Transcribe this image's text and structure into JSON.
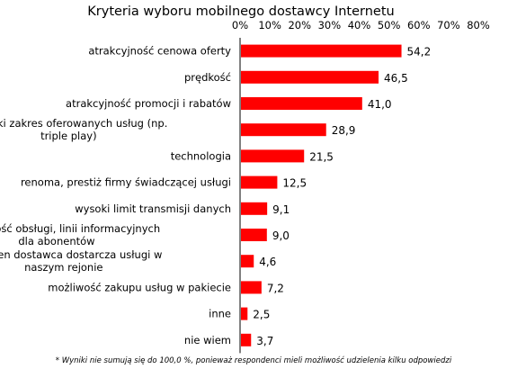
{
  "chart_data": {
    "type": "bar",
    "orientation": "horizontal",
    "title": "Kryteria wyboru mobilnego dostawcy Internetu",
    "xlim": [
      0,
      80
    ],
    "x_ticks": [
      "0%",
      "10%",
      "20%",
      "30%",
      "40%",
      "50%",
      "60%",
      "70%",
      "80%"
    ],
    "grid": false,
    "bar_color": "#ff0000",
    "categories": [
      [
        "atrakcyjność cenowa oferty"
      ],
      [
        "prędkość"
      ],
      [
        "atrakcyjność promocji i rabatów"
      ],
      [
        "szeroki zakres oferowanych usług (np.",
        "triple play)"
      ],
      [
        "technologia"
      ],
      [
        "renoma, prestiż firmy świadczącej usługi"
      ],
      [
        "wysoki limit transmisji danych"
      ],
      [
        "dostępność obsługi, linii informacyjnych",
        "dla abonentów"
      ],
      [
        "tylko ten dostawca dostarcza usługi w",
        "naszym rejonie"
      ],
      [
        "możliwość zakupu usług w pakiecie"
      ],
      [
        "inne"
      ],
      [
        "nie wiem"
      ]
    ],
    "values": [
      54.2,
      46.5,
      41.0,
      28.9,
      21.5,
      12.5,
      9.1,
      9.0,
      4.6,
      7.2,
      2.5,
      3.7
    ],
    "value_labels": [
      "54,2",
      "46,5",
      "41,0",
      "28,9",
      "21,5",
      "12,5",
      "9,1",
      "9,0",
      "4,6",
      "7,2",
      "2,5",
      "3,7"
    ],
    "footnote": "* Wyniki nie sumują się do 100,0 %, ponieważ respondenci mieli możliwość udzielenia kilku odpowiedzi"
  }
}
